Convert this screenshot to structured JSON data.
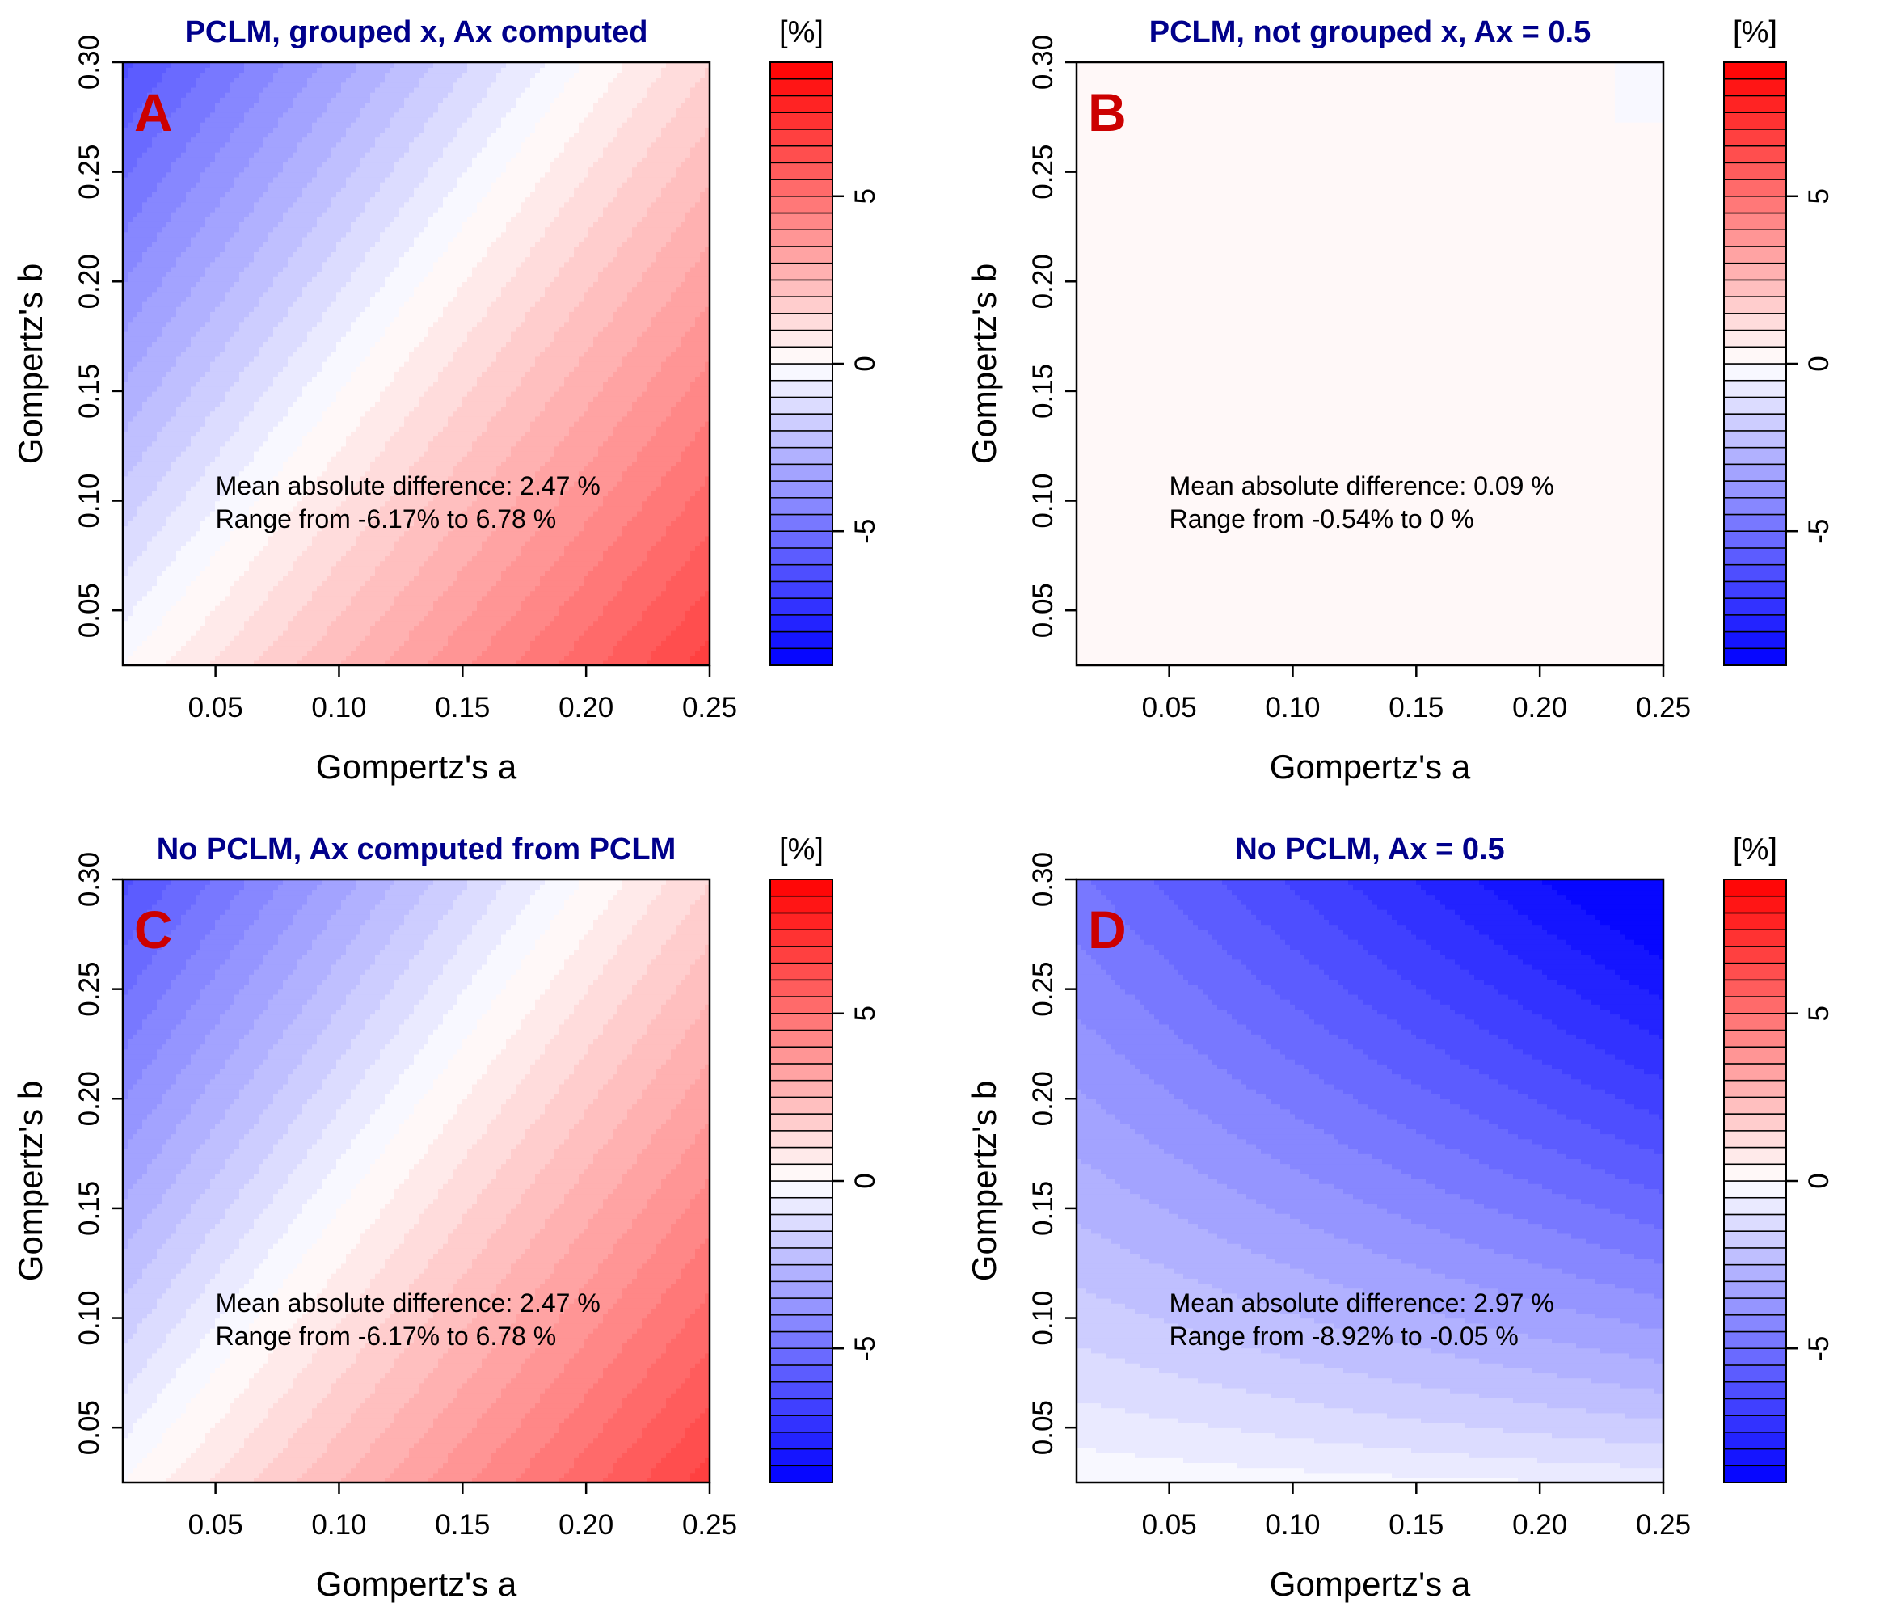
{
  "scale": {
    "label": "[%]",
    "min": -9,
    "max": 9,
    "step": 0.5,
    "ticks": [
      -5,
      0,
      5
    ],
    "tick_labels": [
      "-5",
      "0",
      "5"
    ],
    "low_color": "#0000FF",
    "mid_color": "#FFFFFF",
    "high_color": "#FF0000"
  },
  "chart_data": [
    {
      "type": "heatmap",
      "letter": "A",
      "title": "PCLM, grouped x, Ax computed",
      "xlabel": "Gompertz's a",
      "ylabel": "Gompertz's b",
      "xlim": [
        0.0125,
        0.25
      ],
      "ylim": [
        0.025,
        0.3
      ],
      "xticks": [
        0.05,
        0.1,
        0.15,
        0.2,
        0.25
      ],
      "xtick_labels": [
        "0.05",
        "0.10",
        "0.15",
        "0.20",
        "0.25"
      ],
      "yticks": [
        0.05,
        0.1,
        0.15,
        0.2,
        0.25,
        0.3
      ],
      "ytick_labels": [
        "0.05",
        "0.10",
        "0.15",
        "0.20",
        "0.25",
        "0.30"
      ],
      "annotation": [
        "Mean absolute difference: 2.47 %",
        "Range from -6.17% to 6.78 %"
      ],
      "model": "balance",
      "range": [
        -6.17,
        6.78
      ],
      "mean_abs_diff": 2.47
    },
    {
      "type": "heatmap",
      "letter": "B",
      "title": "PCLM, not grouped x, Ax = 0.5",
      "xlabel": "Gompertz's a",
      "ylabel": "Gompertz's b",
      "xlim": [
        0.0125,
        0.25
      ],
      "ylim": [
        0.025,
        0.3
      ],
      "xticks": [
        0.05,
        0.1,
        0.15,
        0.2,
        0.25
      ],
      "xtick_labels": [
        "0.05",
        "0.10",
        "0.15",
        "0.20",
        "0.25"
      ],
      "yticks": [
        0.05,
        0.1,
        0.15,
        0.2,
        0.25,
        0.3
      ],
      "ytick_labels": [
        "0.05",
        "0.10",
        "0.15",
        "0.20",
        "0.25",
        "0.30"
      ],
      "annotation": [
        "Mean absolute difference: 0.09 %",
        "Range from -0.54% to 0 %"
      ],
      "model": "tiny",
      "range": [
        -0.54,
        0
      ],
      "mean_abs_diff": 0.09
    },
    {
      "type": "heatmap",
      "letter": "C",
      "title": "No PCLM, Ax computed from PCLM",
      "xlabel": "Gompertz's a",
      "ylabel": "Gompertz's b",
      "xlim": [
        0.0125,
        0.25
      ],
      "ylim": [
        0.025,
        0.3
      ],
      "xticks": [
        0.05,
        0.1,
        0.15,
        0.2,
        0.25
      ],
      "xtick_labels": [
        "0.05",
        "0.10",
        "0.15",
        "0.20",
        "0.25"
      ],
      "yticks": [
        0.05,
        0.1,
        0.15,
        0.2,
        0.25,
        0.3
      ],
      "ytick_labels": [
        "0.05",
        "0.10",
        "0.15",
        "0.20",
        "0.25",
        "0.30"
      ],
      "annotation": [
        "Mean absolute difference: 2.47 %",
        "Range from -6.17% to 6.78 %"
      ],
      "model": "balance",
      "range": [
        -6.17,
        6.78
      ],
      "mean_abs_diff": 2.47
    },
    {
      "type": "heatmap",
      "letter": "D",
      "title": "No PCLM, Ax = 0.5",
      "xlabel": "Gompertz's a",
      "ylabel": "Gompertz's b",
      "xlim": [
        0.0125,
        0.25
      ],
      "ylim": [
        0.025,
        0.3
      ],
      "xticks": [
        0.05,
        0.1,
        0.15,
        0.2,
        0.25
      ],
      "xtick_labels": [
        "0.05",
        "0.10",
        "0.15",
        "0.20",
        "0.25"
      ],
      "yticks": [
        0.05,
        0.1,
        0.15,
        0.2,
        0.25,
        0.3
      ],
      "ytick_labels": [
        "0.05",
        "0.10",
        "0.15",
        "0.20",
        "0.25",
        "0.30"
      ],
      "annotation": [
        "Mean absolute difference: 2.97 %",
        "Range from -8.92% to -0.05 %"
      ],
      "model": "negative",
      "range": [
        -8.92,
        -0.05
      ],
      "mean_abs_diff": 2.97
    }
  ]
}
